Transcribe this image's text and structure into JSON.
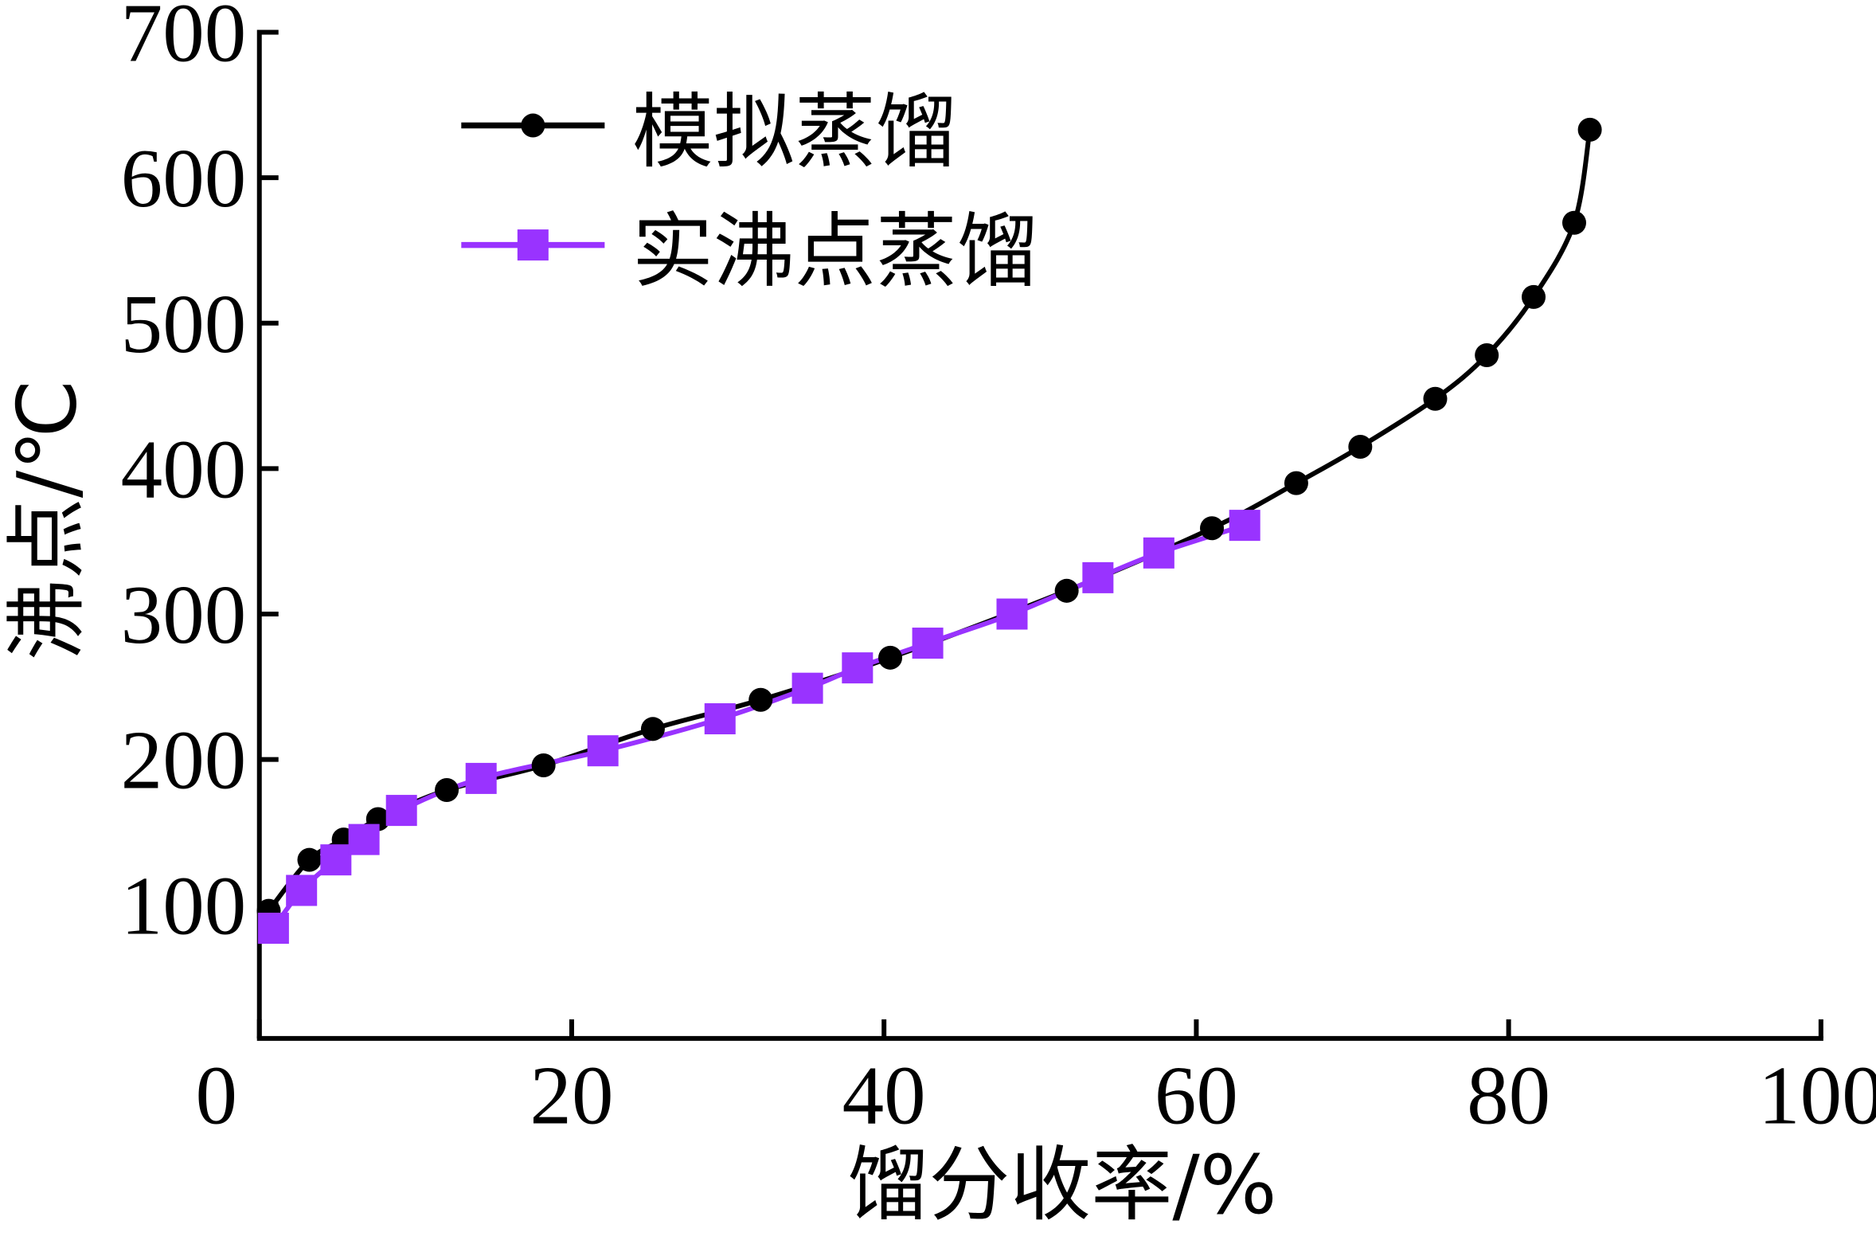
{
  "chart_data": {
    "type": "line",
    "title": "",
    "xlabel": "馏分收率/%",
    "ylabel": "沸点/℃",
    "xlim": [
      0,
      100
    ],
    "ylim": [
      0,
      700
    ],
    "xticks": [
      "0",
      "20",
      "40",
      "60",
      "80",
      "100"
    ],
    "yticks": [
      "100",
      "200",
      "300",
      "400",
      "500",
      "600",
      "700"
    ],
    "legend_placement": "top-left",
    "grid": false,
    "series": [
      {
        "name": "模拟蒸馏",
        "color": "#000000",
        "marker": "circle",
        "x": [
          0.6,
          3.2,
          5.4,
          7.6,
          12.0,
          18.2,
          25.2,
          32.1,
          40.4,
          51.7,
          61.0,
          66.4,
          70.5,
          75.3,
          78.6,
          81.6,
          84.2,
          85.2
        ],
        "y": [
          96,
          131,
          145,
          159,
          179,
          196,
          221,
          241,
          270,
          316,
          359,
          390,
          415,
          448,
          478,
          518,
          569,
          633
        ]
      },
      {
        "name": "实沸点蒸馏",
        "color": "#9933FF",
        "marker": "square",
        "x": [
          0.9,
          2.7,
          4.9,
          6.7,
          9.1,
          14.2,
          22.0,
          29.5,
          35.1,
          38.3,
          42.8,
          48.2,
          53.7,
          57.6,
          63.1
        ],
        "y": [
          84,
          110,
          131,
          145,
          165,
          187,
          206,
          228,
          249,
          263,
          280,
          300,
          325,
          342,
          361
        ]
      }
    ]
  }
}
